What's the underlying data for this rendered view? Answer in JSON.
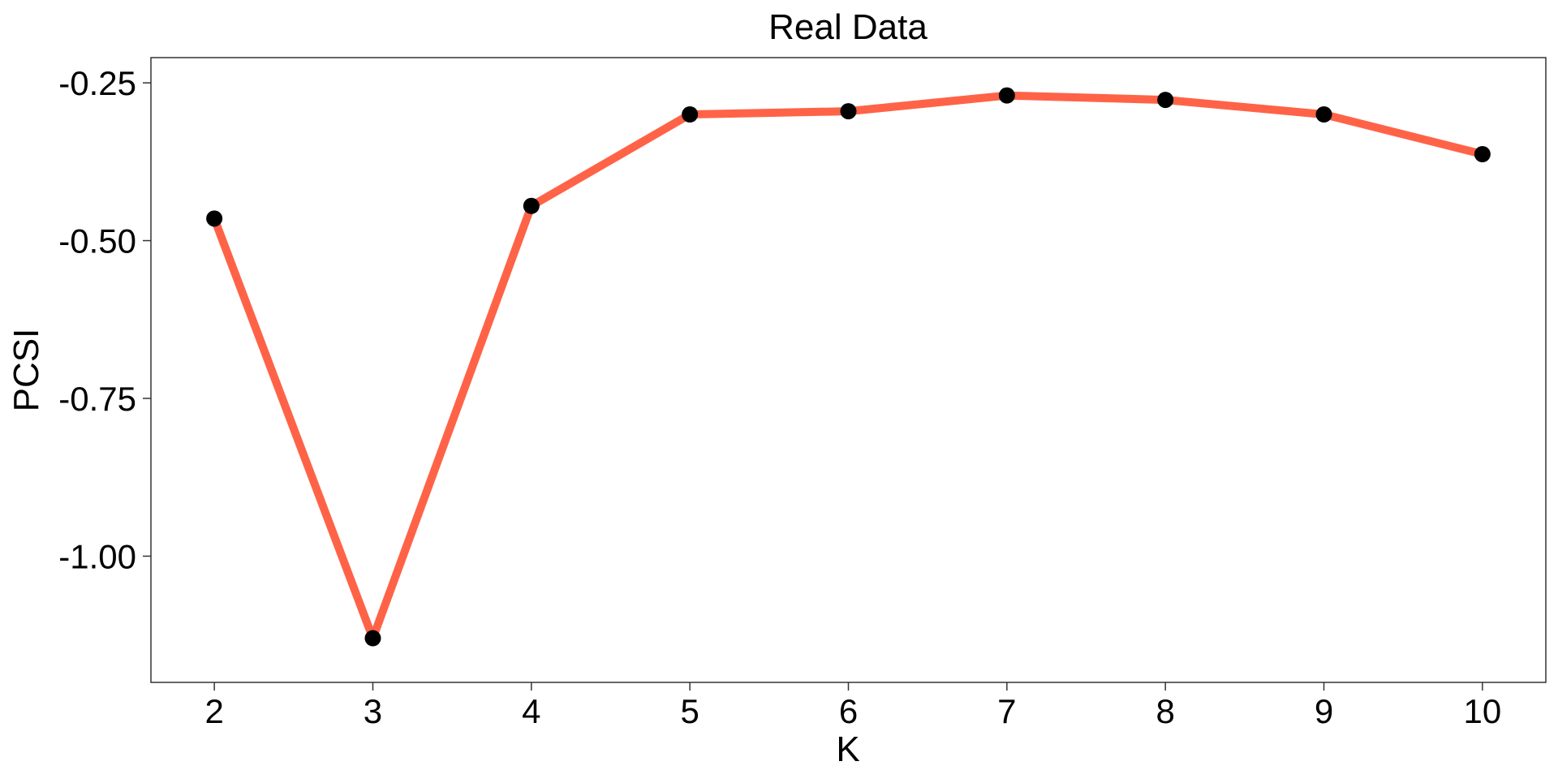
{
  "chart_data": {
    "type": "line",
    "title": "Real Data",
    "xlabel": "K",
    "ylabel": "PCSI",
    "x": [
      2,
      3,
      4,
      5,
      6,
      7,
      8,
      9,
      10
    ],
    "series": [
      {
        "values": [
          -0.465,
          -1.13,
          -0.445,
          -0.3,
          -0.295,
          -0.27,
          -0.277,
          -0.3,
          -0.363
        ],
        "line_color": "#FF6347",
        "marker_color": "#000000"
      }
    ],
    "xlim": [
      1.6,
      10.4
    ],
    "ylim": [
      -1.2,
      -0.21
    ],
    "x_ticks": [
      2,
      3,
      4,
      5,
      6,
      7,
      8,
      9,
      10
    ],
    "x_tick_labels": [
      "2",
      "3",
      "4",
      "5",
      "6",
      "7",
      "8",
      "9",
      "10"
    ],
    "y_ticks": [
      -1.0,
      -0.75,
      -0.5,
      -0.25
    ],
    "y_tick_labels": [
      "-1.00",
      "-0.75",
      "-0.50",
      "-0.25"
    ],
    "grid": false,
    "legend": "none"
  }
}
